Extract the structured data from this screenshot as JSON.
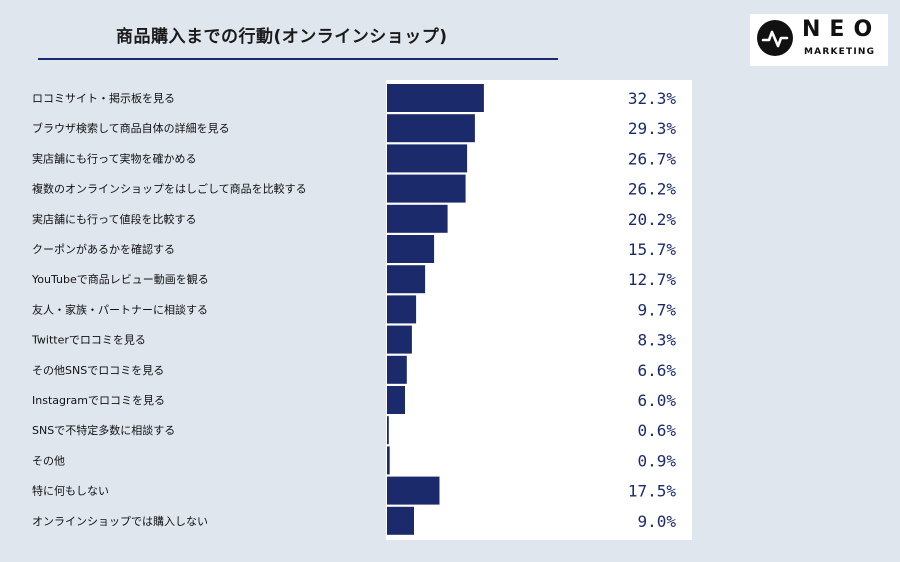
{
  "header": {
    "title": "商品購入までの行動(オンラインショップ)"
  },
  "logo": {
    "wordmark": "NEO",
    "tagline": "MARKETING",
    "icon": "pulse-circle-icon"
  },
  "colors": {
    "bar": "#1b2a6b",
    "background": "#dfe6ee",
    "plot_background": "#ffffff",
    "value_text": "#1b2a6b"
  },
  "chart_data": {
    "type": "bar",
    "orientation": "horizontal",
    "title": "商品購入までの行動(オンラインショップ)",
    "categories": [
      "ロコミサイト・掲示板を見る",
      "ブラウザ検索して商品自体の詳細を見る",
      "実店舗にも行って実物を確かめる",
      "複数のオンラインショップをはしごして商品を比較する",
      "実店舗にも行って値段を比較する",
      "クーポンがあるかを確認する",
      "YouTubeで商品レビュー動画を観る",
      "友人・家族・パートナーに相談する",
      "Twitterでロコミを見る",
      "その他SNSでロコミを見る",
      "Instagramでロコミを見る",
      "SNSで不特定多数に相談する",
      "その他",
      "特に何もしない",
      "オンラインショップでは購入しない"
    ],
    "values": [
      32.3,
      29.3,
      26.7,
      26.2,
      20.2,
      15.7,
      12.7,
      9.7,
      8.3,
      6.6,
      6.0,
      0.6,
      0.9,
      17.5,
      9.0
    ],
    "value_labels": [
      "32.3%",
      "29.3%",
      "26.7%",
      "26.2%",
      "20.2%",
      "15.7%",
      "12.7%",
      "9.7%",
      "8.3%",
      "6.6%",
      "6.0%",
      "0.6%",
      "0.9%",
      "17.5%",
      "9.0%"
    ],
    "xlim": [
      0,
      100
    ],
    "grid": false,
    "legend": "none"
  }
}
